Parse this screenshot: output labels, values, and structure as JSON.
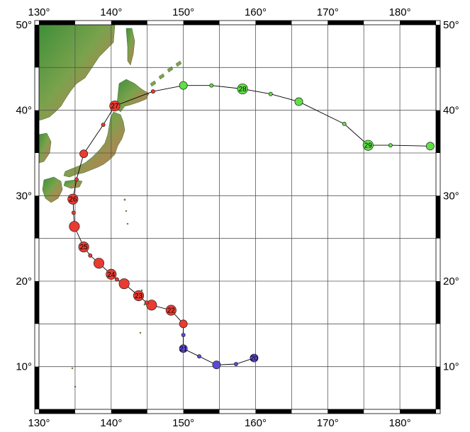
{
  "map": {
    "lon_range": [
      130,
      185
    ],
    "lat_range": [
      5,
      50
    ],
    "grid_step": 5,
    "lon_labels": [
      {
        "lon": 130,
        "text": "130°"
      },
      {
        "lon": 140,
        "text": "140°"
      },
      {
        "lon": 150,
        "text": "150°"
      },
      {
        "lon": 160,
        "text": "160°"
      },
      {
        "lon": 170,
        "text": "170°"
      },
      {
        "lon": 180,
        "text": "180°"
      }
    ],
    "lat_labels": [
      {
        "lat": 10,
        "text": "10°"
      },
      {
        "lat": 20,
        "text": "20°"
      },
      {
        "lat": 30,
        "text": "30°"
      },
      {
        "lat": 40,
        "text": "40°"
      },
      {
        "lat": 50,
        "text": "50°"
      }
    ],
    "colors": {
      "tropical": "#5b49d6",
      "typhoon": "#ea3b30",
      "extratropical": "#5fe045",
      "track_line": "#000000",
      "grid": "#555555",
      "land_low": "#3f8f3a",
      "land_high": "#b08050"
    }
  },
  "chart_data": {
    "type": "scatter",
    "track": [
      {
        "lon": 159.8,
        "lat": 11.0,
        "stage": "tropical",
        "size": 3,
        "label": "20"
      },
      {
        "lon": 157.3,
        "lat": 10.3,
        "stage": "tropical",
        "size": 1
      },
      {
        "lon": 154.6,
        "lat": 10.2,
        "stage": "tropical",
        "size": 3
      },
      {
        "lon": 152.2,
        "lat": 11.2,
        "stage": "tropical",
        "size": 1
      },
      {
        "lon": 150.0,
        "lat": 12.1,
        "stage": "tropical",
        "size": 3,
        "label": "21"
      },
      {
        "lon": 150.0,
        "lat": 13.7,
        "stage": "tropical",
        "size": 1
      },
      {
        "lon": 150.0,
        "lat": 15.0,
        "stage": "typhoon",
        "size": 3
      },
      {
        "lon": 148.3,
        "lat": 16.6,
        "stage": "typhoon",
        "size": 4,
        "label": "22"
      },
      {
        "lon": 145.6,
        "lat": 17.2,
        "stage": "typhoon",
        "size": 4
      },
      {
        "lon": 144.9,
        "lat": 17.5,
        "stage": "typhoon",
        "size": 1
      },
      {
        "lon": 143.8,
        "lat": 18.3,
        "stage": "typhoon",
        "size": 4,
        "label": "23"
      },
      {
        "lon": 141.8,
        "lat": 19.7,
        "stage": "typhoon",
        "size": 4
      },
      {
        "lon": 140.8,
        "lat": 20.2,
        "stage": "typhoon",
        "size": 1
      },
      {
        "lon": 140.0,
        "lat": 20.8,
        "stage": "typhoon",
        "size": 4,
        "label": "24"
      },
      {
        "lon": 138.3,
        "lat": 22.1,
        "stage": "typhoon",
        "size": 4
      },
      {
        "lon": 137.1,
        "lat": 23.0,
        "stage": "typhoon",
        "size": 1
      },
      {
        "lon": 136.2,
        "lat": 24.0,
        "stage": "typhoon",
        "size": 4,
        "label": "25"
      },
      {
        "lon": 134.9,
        "lat": 26.4,
        "stage": "typhoon",
        "size": 4
      },
      {
        "lon": 134.8,
        "lat": 28.0,
        "stage": "typhoon",
        "size": 1
      },
      {
        "lon": 134.7,
        "lat": 29.6,
        "stage": "typhoon",
        "size": 4,
        "label": "26"
      },
      {
        "lon": 135.2,
        "lat": 31.9,
        "stage": "typhoon",
        "size": 1
      },
      {
        "lon": 136.2,
        "lat": 34.9,
        "stage": "typhoon",
        "size": 3
      },
      {
        "lon": 138.9,
        "lat": 38.3,
        "stage": "typhoon",
        "size": 1
      },
      {
        "lon": 140.5,
        "lat": 40.5,
        "stage": "typhoon",
        "size": 4,
        "label": "27"
      },
      {
        "lon": 145.8,
        "lat": 42.2,
        "stage": "typhoon",
        "size": 1
      },
      {
        "lon": 150.0,
        "lat": 42.9,
        "stage": "extratropical",
        "size": 3
      },
      {
        "lon": 153.9,
        "lat": 42.9,
        "stage": "extratropical",
        "size": 1
      },
      {
        "lon": 158.2,
        "lat": 42.5,
        "stage": "extratropical",
        "size": 4,
        "label": "28"
      },
      {
        "lon": 162.1,
        "lat": 41.9,
        "stage": "extratropical",
        "size": 1
      },
      {
        "lon": 166.0,
        "lat": 41.0,
        "stage": "extratropical",
        "size": 3
      },
      {
        "lon": 172.3,
        "lat": 38.4,
        "stage": "extratropical",
        "size": 1
      },
      {
        "lon": 175.6,
        "lat": 35.9,
        "stage": "extratropical",
        "size": 4,
        "label": "29"
      },
      {
        "lon": 178.7,
        "lat": 35.9,
        "stage": "extratropical",
        "size": 1
      },
      {
        "lon": 184.2,
        "lat": 35.8,
        "stage": "extratropical",
        "size": 3
      }
    ]
  }
}
